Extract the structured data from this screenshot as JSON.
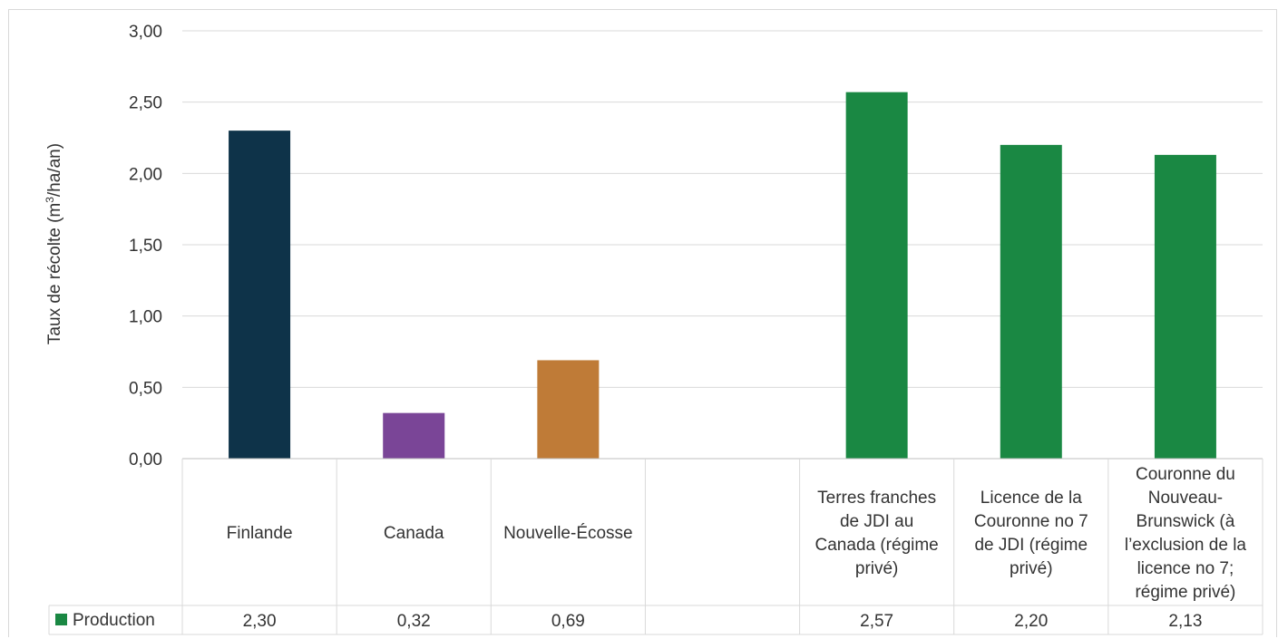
{
  "chart_data": {
    "type": "bar",
    "ylabel_main": "Taux de récolte (m",
    "ylabel_sup": "3",
    "ylabel_rest": "/ha/an)",
    "ylim": [
      0,
      3
    ],
    "ytick_values": [
      0,
      0.5,
      1,
      1.5,
      2,
      2.5,
      3
    ],
    "yticks": [
      "0,00",
      "0,50",
      "1,00",
      "1,50",
      "2,00",
      "2,50",
      "3,00"
    ],
    "grid": true,
    "categories": [
      [
        "Finlande"
      ],
      [
        "Canada"
      ],
      [
        "Nouvelle-Écosse"
      ],
      [],
      [
        "Terres franches",
        "de JDI au",
        "Canada (régime",
        "privé)"
      ],
      [
        "Licence de la",
        "Couronne no 7",
        "de JDI (régime",
        "privé)"
      ],
      [
        "Couronne du",
        "Nouveau-",
        "Brunswick (à",
        "l’exclusion de la",
        "licence no 7;",
        "régime privé)"
      ]
    ],
    "values": [
      2.3,
      0.32,
      0.69,
      null,
      2.57,
      2.2,
      2.13
    ],
    "value_labels": [
      "2,30",
      "0,32",
      "0,69",
      "",
      "2,57",
      "2,20",
      "2,13"
    ],
    "bar_colors": [
      "#0e3349",
      "#7a4597",
      "#bf7b37",
      "#1a8843",
      "#1a8843",
      "#1a8843",
      "#1a8843"
    ],
    "series": [
      {
        "name": "Production",
        "legend_color": "#1a8843"
      }
    ]
  }
}
